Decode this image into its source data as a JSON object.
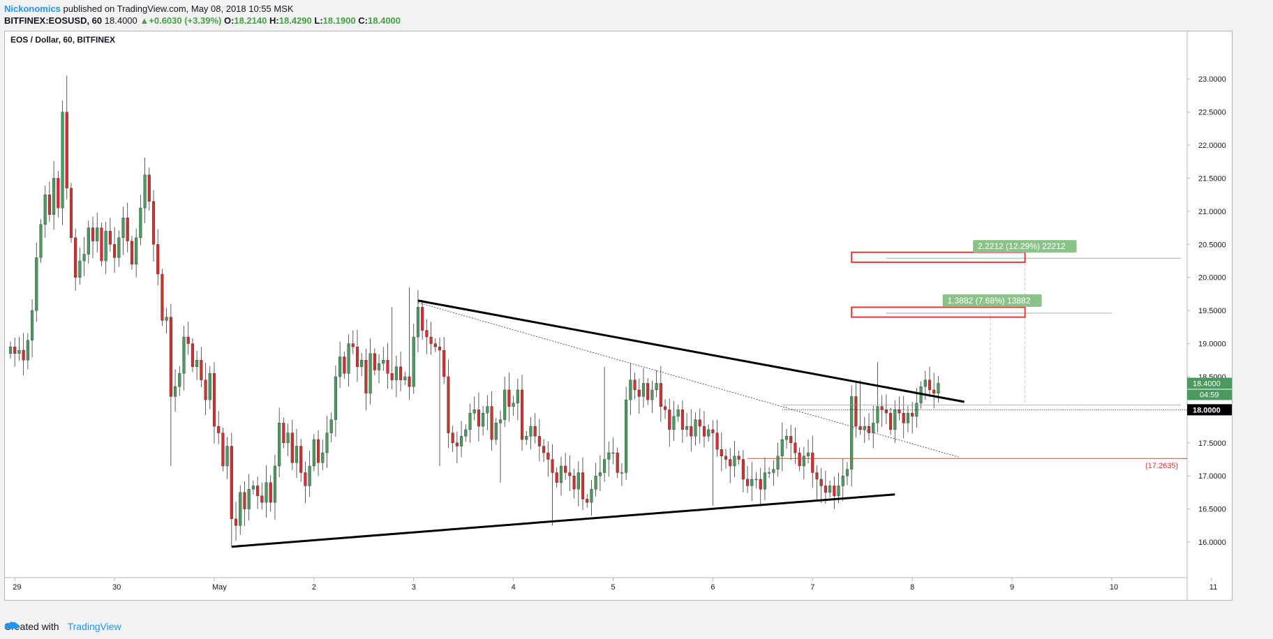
{
  "header": {
    "author": "Nickonomics",
    "published": "published on TradingView.com, May 08, 2018 10:55 MSK"
  },
  "ohlc": {
    "symbol": "BITFINEX:EOSUSD, 60",
    "last": "18.4000",
    "change": "+0.6030 (+3.39%)",
    "o_label": "O:",
    "o": "18.2140",
    "h_label": "H:",
    "h": "18.4290",
    "l_label": "L:",
    "l": "18.1900",
    "c_label": "C:",
    "c": "18.4000"
  },
  "footer": {
    "created_with": "Created with",
    "brand": "TradingView",
    "brand_icon": "tradingview-cloud-icon"
  },
  "colors": {
    "up": "#4a9a5f",
    "down": "#d32f2f",
    "wick": "#333333",
    "accent": "#2196f3",
    "measure": "#8bc28a",
    "target_box": "#e53935"
  },
  "chart_data": {
    "type": "candlestick",
    "title": "EOS / Dollar, 60, BITFINEX",
    "xlabel": "",
    "ylabel": "",
    "ylim": [
      15.6,
      23.35
    ],
    "xlim": [
      0,
      278
    ],
    "grid": false,
    "x_ticks": [
      {
        "i": 1,
        "label": "29"
      },
      {
        "i": 24,
        "label": "30"
      },
      {
        "i": 47,
        "label": "May"
      },
      {
        "i": 70,
        "label": "2"
      },
      {
        "i": 93,
        "label": "3"
      },
      {
        "i": 116,
        "label": "4"
      },
      {
        "i": 139,
        "label": "5"
      },
      {
        "i": 162,
        "label": "6"
      },
      {
        "i": 185,
        "label": "7"
      },
      {
        "i": 208,
        "label": "8"
      },
      {
        "i": 231,
        "label": "9"
      },
      {
        "i": 254,
        "label": "10"
      },
      {
        "i": 277,
        "label": "11"
      }
    ],
    "y_ticks": [
      "23.0000",
      "22.5000",
      "22.0000",
      "21.5000",
      "21.0000",
      "20.5000",
      "20.0000",
      "19.5000",
      "19.0000",
      "18.5000",
      "18.0000",
      "17.5000",
      "17.0000",
      "16.5000",
      "16.0000"
    ],
    "y_tick_values": [
      23.0,
      22.5,
      22.0,
      21.5,
      21.0,
      20.5,
      20.0,
      19.5,
      19.0,
      18.5,
      18.0,
      17.5,
      17.0,
      16.5,
      16.0
    ],
    "close": [
      18.95,
      18.85,
      18.9,
      18.75,
      19.05,
      19.5,
      20.3,
      20.8,
      21.25,
      20.95,
      21.5,
      21.05,
      22.5,
      21.35,
      20.6,
      20.0,
      20.25,
      20.35,
      20.75,
      20.55,
      20.75,
      20.25,
      20.7,
      20.5,
      20.3,
      20.6,
      20.9,
      20.55,
      20.2,
      20.6,
      21.05,
      21.55,
      21.15,
      20.5,
      20.05,
      19.35,
      19.4,
      18.2,
      18.35,
      18.55,
      19.1,
      19.0,
      18.65,
      18.75,
      18.45,
      18.15,
      18.55,
      17.75,
      17.65,
      17.15,
      17.45,
      16.35,
      16.25,
      16.75,
      16.5,
      16.8,
      16.85,
      16.7,
      16.6,
      16.9,
      16.6,
      17.15,
      17.8,
      17.5,
      17.65,
      17.2,
      17.45,
      17.05,
      16.85,
      17.15,
      17.55,
      17.2,
      17.35,
      17.65,
      17.85,
      18.5,
      18.8,
      18.55,
      19.0,
      18.95,
      18.65,
      18.75,
      18.25,
      18.85,
      18.6,
      18.7,
      18.75,
      18.55,
      18.45,
      18.65,
      18.45,
      18.5,
      18.35,
      19.1,
      19.55,
      19.2,
      19.1,
      19.0,
      18.95,
      18.9,
      18.5,
      17.65,
      17.5,
      17.45,
      17.6,
      17.7,
      17.95,
      18.0,
      17.75,
      17.95,
      18.05,
      17.55,
      17.8,
      17.85,
      18.3,
      18.05,
      18.1,
      18.3,
      17.55,
      17.6,
      17.75,
      17.6,
      17.45,
      17.35,
      17.25,
      17.05,
      16.9,
      17.15,
      17.05,
      17.0,
      16.8,
      17.05,
      16.65,
      16.6,
      16.8,
      17.0,
      17.05,
      17.25,
      17.35,
      17.35,
      17.05,
      17.05,
      18.15,
      18.45,
      18.3,
      18.2,
      18.4,
      18.15,
      18.3,
      18.4,
      18.05,
      18.0,
      17.7,
      17.9,
      18.0,
      17.7,
      17.75,
      17.6,
      17.85,
      17.75,
      17.6,
      17.7,
      17.65,
      17.4,
      17.3,
      17.25,
      17.15,
      17.3,
      17.25,
      16.95,
      16.85,
      16.95,
      16.95,
      16.8,
      17.05,
      17.05,
      17.1,
      17.3,
      17.55,
      17.6,
      17.5,
      17.35,
      17.15,
      17.3,
      17.35,
      17.05,
      16.95,
      16.85,
      16.75,
      16.85,
      16.7,
      16.85,
      17.0,
      17.1,
      18.2,
      17.75,
      17.7,
      17.75,
      17.65,
      17.8,
      18.05,
      18.0,
      17.95,
      17.7,
      18.0,
      17.95,
      17.8,
      17.95,
      17.9,
      18.1,
      18.35,
      18.45,
      18.3,
      18.25,
      18.4
    ],
    "annotations": [
      {
        "kind": "measure_label",
        "text": "2.2212 (12.29%) 22212"
      },
      {
        "kind": "measure_label",
        "text": "1.3882 (7.68%) 13882"
      },
      {
        "kind": "price_line",
        "text": "(17.2635)",
        "value": 17.2635
      },
      {
        "kind": "current_price",
        "text": "18.4000",
        "value": 18.4
      },
      {
        "kind": "countdown",
        "text": "04:59"
      },
      {
        "kind": "crosshair_price",
        "text": "18.0000",
        "value": 18.0
      },
      {
        "kind": "trendline_upper",
        "from": [
          94,
          19.65
        ],
        "to": [
          220,
          18.12
        ]
      },
      {
        "kind": "trendline_lower",
        "from": [
          51,
          15.93
        ],
        "to": [
          204,
          16.72
        ]
      },
      {
        "kind": "dotted_trendline",
        "from": [
          94,
          19.62
        ],
        "to": [
          219,
          17.28
        ]
      },
      {
        "kind": "target_box",
        "from": [
          194,
          20.38
        ],
        "to": [
          234,
          20.23
        ]
      },
      {
        "kind": "target_box",
        "from": [
          194,
          19.55
        ],
        "to": [
          234,
          19.4
        ]
      }
    ]
  }
}
